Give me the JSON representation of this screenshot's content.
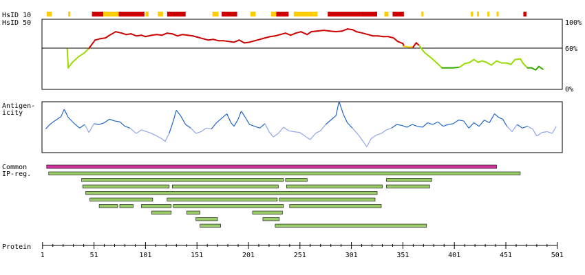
{
  "labels": {
    "hsid10": "HsID 10",
    "hsid50": "HsID 50",
    "antigenicity": [
      "Antigen-",
      "icity"
    ],
    "common": [
      "Common",
      "IP-reg."
    ],
    "protein": "Protein",
    "pct_top": "100%",
    "pct_mid": "60%",
    "pct_bot": "0%"
  },
  "colors": {
    "identity_high": "#cc0000",
    "identity_mid_high": "#dd3300",
    "identity_mid": "#ffcc00",
    "identity_low": "#99dd00",
    "identity_lowest": "#33aa00",
    "antigen_high": "#1e63c8",
    "antigen_low": "#8fa6e8",
    "common_bar": "#cc3399",
    "region_bar": "#99cc66",
    "frame": "#000000"
  },
  "chart_data": [
    {
      "type": "heatmap",
      "name": "HsID 10",
      "x_range": [
        1,
        501
      ],
      "segments": [
        {
          "start": 5,
          "end": 10,
          "color": "#ffcc00"
        },
        {
          "start": 26,
          "end": 28,
          "color": "#ffcc00"
        },
        {
          "start": 49,
          "end": 60,
          "color": "#cc0000"
        },
        {
          "start": 60,
          "end": 75,
          "color": "#ffcc00"
        },
        {
          "start": 75,
          "end": 100,
          "color": "#cc0000"
        },
        {
          "start": 101,
          "end": 104,
          "color": "#ffcc00"
        },
        {
          "start": 113,
          "end": 118,
          "color": "#ffcc00"
        },
        {
          "start": 122,
          "end": 140,
          "color": "#cc0000"
        },
        {
          "start": 166,
          "end": 172,
          "color": "#ffcc00"
        },
        {
          "start": 175,
          "end": 190,
          "color": "#cc0000"
        },
        {
          "start": 203,
          "end": 208,
          "color": "#ffcc00"
        },
        {
          "start": 223,
          "end": 228,
          "color": "#ffcc00"
        },
        {
          "start": 228,
          "end": 240,
          "color": "#cc0000"
        },
        {
          "start": 245,
          "end": 268,
          "color": "#ffcc00"
        },
        {
          "start": 278,
          "end": 310,
          "color": "#cc0000"
        },
        {
          "start": 310,
          "end": 326,
          "color": "#cc0000"
        },
        {
          "start": 333,
          "end": 337,
          "color": "#ffcc00"
        },
        {
          "start": 341,
          "end": 352,
          "color": "#cc0000"
        },
        {
          "start": 369,
          "end": 371,
          "color": "#ffcc00"
        },
        {
          "start": 417,
          "end": 419,
          "color": "#ffcc00"
        },
        {
          "start": 423,
          "end": 425,
          "color": "#ffcc00"
        },
        {
          "start": 433,
          "end": 435,
          "color": "#ffcc00"
        },
        {
          "start": 442,
          "end": 444,
          "color": "#ffcc00"
        },
        {
          "start": 468,
          "end": 471,
          "color": "#cc0000"
        }
      ]
    },
    {
      "type": "line",
      "name": "HsID 50",
      "x_range": [
        1,
        501
      ],
      "ylim": [
        0,
        100
      ],
      "reference_line": 60,
      "y_ticks": [
        "100%",
        "60%",
        "0%"
      ],
      "points": [
        [
          25,
          57
        ],
        [
          26,
          30
        ],
        [
          30,
          38
        ],
        [
          36,
          46
        ],
        [
          42,
          52
        ],
        [
          46,
          58
        ],
        [
          52,
          70
        ],
        [
          57,
          72
        ],
        [
          62,
          73
        ],
        [
          65,
          76
        ],
        [
          72,
          82
        ],
        [
          78,
          80
        ],
        [
          82,
          78
        ],
        [
          87,
          79
        ],
        [
          92,
          76
        ],
        [
          97,
          77
        ],
        [
          101,
          75
        ],
        [
          107,
          77
        ],
        [
          112,
          78
        ],
        [
          117,
          77
        ],
        [
          122,
          80
        ],
        [
          127,
          79
        ],
        [
          132,
          76
        ],
        [
          137,
          78
        ],
        [
          142,
          77
        ],
        [
          147,
          76
        ],
        [
          152,
          74
        ],
        [
          157,
          72
        ],
        [
          162,
          70
        ],
        [
          167,
          71
        ],
        [
          172,
          69
        ],
        [
          177,
          69
        ],
        [
          182,
          68
        ],
        [
          187,
          67
        ],
        [
          192,
          70
        ],
        [
          197,
          66
        ],
        [
          202,
          67
        ],
        [
          207,
          69
        ],
        [
          212,
          71
        ],
        [
          217,
          73
        ],
        [
          222,
          75
        ],
        [
          227,
          76
        ],
        [
          232,
          78
        ],
        [
          237,
          80
        ],
        [
          242,
          77
        ],
        [
          247,
          80
        ],
        [
          252,
          82
        ],
        [
          258,
          78
        ],
        [
          262,
          82
        ],
        [
          268,
          83
        ],
        [
          274,
          84
        ],
        [
          280,
          83
        ],
        [
          286,
          82
        ],
        [
          292,
          83
        ],
        [
          297,
          86
        ],
        [
          302,
          85
        ],
        [
          306,
          82
        ],
        [
          312,
          80
        ],
        [
          317,
          78
        ],
        [
          322,
          76
        ],
        [
          327,
          76
        ],
        [
          332,
          75
        ],
        [
          337,
          75
        ],
        [
          342,
          73
        ],
        [
          346,
          68
        ],
        [
          351,
          65
        ],
        [
          352,
          61
        ],
        [
          357,
          60
        ],
        [
          361,
          60
        ],
        [
          364,
          66
        ],
        [
          367,
          62
        ],
        [
          372,
          52
        ],
        [
          378,
          45
        ],
        [
          384,
          37
        ],
        [
          389,
          30
        ],
        [
          394,
          30
        ],
        [
          400,
          30
        ],
        [
          406,
          31
        ],
        [
          411,
          36
        ],
        [
          416,
          38
        ],
        [
          420,
          42
        ],
        [
          424,
          38
        ],
        [
          428,
          40
        ],
        [
          432,
          38
        ],
        [
          437,
          34
        ],
        [
          442,
          40
        ],
        [
          447,
          37
        ],
        [
          452,
          37
        ],
        [
          456,
          35
        ],
        [
          460,
          42
        ],
        [
          465,
          43
        ],
        [
          468,
          36
        ],
        [
          472,
          30
        ],
        [
          476,
          30
        ],
        [
          480,
          27
        ],
        [
          483,
          32
        ],
        [
          487,
          28
        ]
      ]
    },
    {
      "type": "line",
      "name": "Antigenicity",
      "x_range": [
        1,
        501
      ],
      "ylim": [
        -1.2,
        1.5
      ],
      "points": [
        [
          4,
          0.05
        ],
        [
          9,
          0.35
        ],
        [
          14,
          0.55
        ],
        [
          19,
          0.75
        ],
        [
          22,
          1.15
        ],
        [
          26,
          0.7
        ],
        [
          31,
          0.4
        ],
        [
          37,
          0.1
        ],
        [
          42,
          0.3
        ],
        [
          46,
          -0.15
        ],
        [
          51,
          0.35
        ],
        [
          56,
          0.3
        ],
        [
          61,
          0.4
        ],
        [
          66,
          0.6
        ],
        [
          71,
          0.5
        ],
        [
          76,
          0.45
        ],
        [
          81,
          0.2
        ],
        [
          86,
          0.1
        ],
        [
          92,
          -0.2
        ],
        [
          97,
          0.0
        ],
        [
          102,
          -0.1
        ],
        [
          107,
          -0.2
        ],
        [
          112,
          -0.35
        ],
        [
          117,
          -0.5
        ],
        [
          120,
          -0.65
        ],
        [
          124,
          -0.2
        ],
        [
          128,
          0.5
        ],
        [
          131,
          1.1
        ],
        [
          135,
          0.8
        ],
        [
          140,
          0.3
        ],
        [
          145,
          0.1
        ],
        [
          150,
          -0.2
        ],
        [
          155,
          -0.1
        ],
        [
          160,
          0.1
        ],
        [
          165,
          0.05
        ],
        [
          170,
          0.4
        ],
        [
          175,
          0.65
        ],
        [
          180,
          0.9
        ],
        [
          184,
          0.4
        ],
        [
          187,
          0.2
        ],
        [
          191,
          0.6
        ],
        [
          194,
          1.05
        ],
        [
          198,
          0.7
        ],
        [
          202,
          0.3
        ],
        [
          207,
          0.2
        ],
        [
          212,
          0.1
        ],
        [
          217,
          0.35
        ],
        [
          221,
          -0.1
        ],
        [
          225,
          -0.4
        ],
        [
          230,
          -0.2
        ],
        [
          235,
          0.15
        ],
        [
          240,
          -0.05
        ],
        [
          245,
          -0.1
        ],
        [
          251,
          -0.15
        ],
        [
          256,
          -0.35
        ],
        [
          261,
          -0.55
        ],
        [
          266,
          -0.2
        ],
        [
          271,
          -0.05
        ],
        [
          276,
          0.3
        ],
        [
          281,
          0.55
        ],
        [
          286,
          0.8
        ],
        [
          289,
          1.6
        ],
        [
          293,
          0.9
        ],
        [
          297,
          0.4
        ],
        [
          302,
          0.1
        ],
        [
          308,
          -0.3
        ],
        [
          313,
          -0.7
        ],
        [
          316,
          -0.95
        ],
        [
          320,
          -0.5
        ],
        [
          325,
          -0.3
        ],
        [
          330,
          -0.2
        ],
        [
          335,
          0.0
        ],
        [
          340,
          0.1
        ],
        [
          345,
          0.3
        ],
        [
          350,
          0.25
        ],
        [
          355,
          0.15
        ],
        [
          360,
          0.3
        ],
        [
          365,
          0.2
        ],
        [
          370,
          0.15
        ],
        [
          375,
          0.4
        ],
        [
          380,
          0.3
        ],
        [
          385,
          0.45
        ],
        [
          390,
          0.2
        ],
        [
          395,
          0.3
        ],
        [
          400,
          0.35
        ],
        [
          405,
          0.55
        ],
        [
          410,
          0.5
        ],
        [
          415,
          0.1
        ],
        [
          420,
          0.4
        ],
        [
          425,
          0.2
        ],
        [
          430,
          0.55
        ],
        [
          435,
          0.4
        ],
        [
          440,
          0.9
        ],
        [
          444,
          0.7
        ],
        [
          448,
          0.6
        ],
        [
          452,
          0.2
        ],
        [
          457,
          -0.1
        ],
        [
          462,
          0.3
        ],
        [
          467,
          0.1
        ],
        [
          472,
          0.2
        ],
        [
          477,
          0.05
        ],
        [
          481,
          -0.35
        ],
        [
          486,
          -0.15
        ],
        [
          491,
          -0.1
        ],
        [
          496,
          -0.2
        ],
        [
          500,
          0.2
        ]
      ]
    },
    {
      "type": "bar",
      "name": "Common IP-reg.",
      "x_range": [
        1,
        501
      ],
      "common_region": {
        "start": 5,
        "end": 442
      },
      "regions": [
        {
          "row": 0,
          "start": 7,
          "end": 465
        },
        {
          "row": 1,
          "start": 39,
          "end": 235
        },
        {
          "row": 1,
          "start": 237,
          "end": 258
        },
        {
          "row": 1,
          "start": 335,
          "end": 379
        },
        {
          "row": 2,
          "start": 40,
          "end": 124
        },
        {
          "row": 2,
          "start": 127,
          "end": 230
        },
        {
          "row": 2,
          "start": 238,
          "end": 331
        },
        {
          "row": 2,
          "start": 335,
          "end": 377
        },
        {
          "row": 3,
          "start": 43,
          "end": 326
        },
        {
          "row": 4,
          "start": 47,
          "end": 108
        },
        {
          "row": 4,
          "start": 122,
          "end": 229
        },
        {
          "row": 4,
          "start": 231,
          "end": 324
        },
        {
          "row": 5,
          "start": 56,
          "end": 74
        },
        {
          "row": 5,
          "start": 76,
          "end": 89
        },
        {
          "row": 5,
          "start": 97,
          "end": 126
        },
        {
          "row": 5,
          "start": 128,
          "end": 235
        },
        {
          "row": 5,
          "start": 241,
          "end": 330
        },
        {
          "row": 6,
          "start": 107,
          "end": 126
        },
        {
          "row": 6,
          "start": 141,
          "end": 154
        },
        {
          "row": 6,
          "start": 205,
          "end": 234
        },
        {
          "row": 7,
          "start": 150,
          "end": 171
        },
        {
          "row": 7,
          "start": 215,
          "end": 231
        },
        {
          "row": 8,
          "start": 154,
          "end": 174
        },
        {
          "row": 8,
          "start": 227,
          "end": 374
        }
      ]
    },
    {
      "type": "axis",
      "name": "Protein",
      "x_range": [
        1,
        501
      ],
      "tick_labels": [
        "1",
        "51",
        "101",
        "151",
        "201",
        "251",
        "301",
        "351",
        "401",
        "451",
        "501"
      ],
      "minor_tick_step": 10
    }
  ]
}
